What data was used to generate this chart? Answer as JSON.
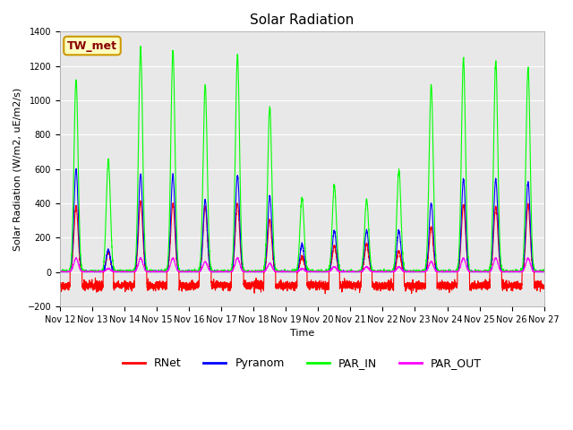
{
  "title": "Solar Radiation",
  "ylabel": "Solar Radiation (W/m2, uE/m2/s)",
  "xlabel": "Time",
  "ylim": [
    -200,
    1400
  ],
  "yticks": [
    -200,
    0,
    200,
    400,
    600,
    800,
    1000,
    1200,
    1400
  ],
  "xtick_labels": [
    "Nov 12",
    "Nov 13",
    "Nov 14",
    "Nov 15",
    "Nov 16",
    "Nov 17",
    "Nov 18",
    "Nov 19",
    "Nov 20",
    "Nov 21",
    "Nov 22",
    "Nov 23",
    "Nov 24",
    "Nov 25",
    "Nov 26",
    "Nov 27"
  ],
  "station_label": "TW_met",
  "station_label_facecolor": "#FFFFC0",
  "station_label_edgecolor": "#CC9900",
  "station_label_textcolor": "#880000",
  "background_color": "#E8E8E8",
  "colors": {
    "RNet": "#FF0000",
    "Pyranom": "#0000FF",
    "PAR_IN": "#00FF00",
    "PAR_OUT": "#FF00FF"
  },
  "n_days": 15,
  "samples_per_day": 288,
  "day_peaks_PAR_IN": [
    1120,
    650,
    1310,
    1290,
    1090,
    1260,
    960,
    430,
    500,
    420,
    590,
    1090,
    1240,
    1230,
    1190
  ],
  "day_peaks_Pyranom": [
    600,
    130,
    570,
    570,
    420,
    560,
    440,
    160,
    240,
    240,
    240,
    400,
    540,
    540,
    520
  ],
  "day_peaks_RNet": [
    380,
    120,
    410,
    400,
    380,
    400,
    300,
    90,
    150,
    160,
    120,
    260,
    390,
    380,
    390
  ],
  "day_peaks_PAR_OUT": [
    80,
    20,
    80,
    80,
    60,
    80,
    50,
    20,
    30,
    30,
    30,
    60,
    80,
    80,
    80
  ],
  "night_RNet": -80,
  "title_fontsize": 11,
  "axis_fontsize": 8,
  "tick_fontsize": 7,
  "legend_fontsize": 9,
  "line_width": 0.8
}
